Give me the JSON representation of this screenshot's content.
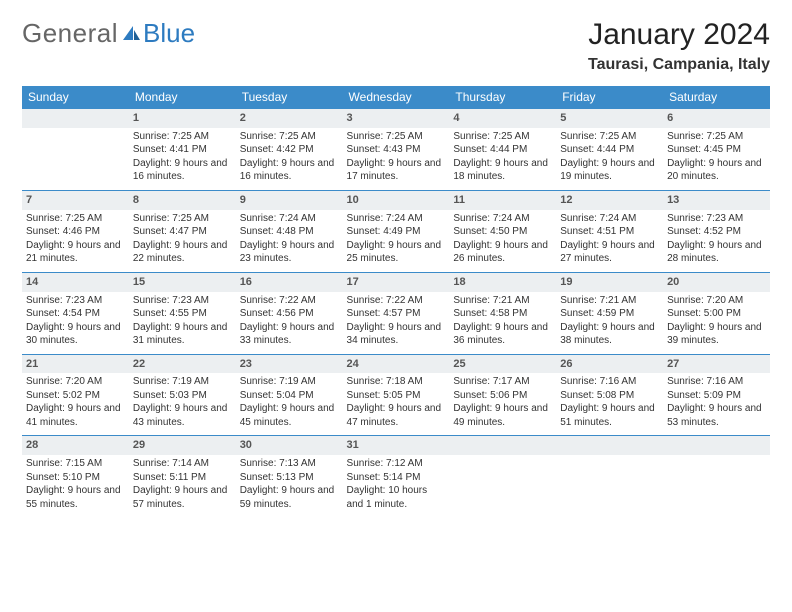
{
  "brand": {
    "part1": "General",
    "part2": "Blue"
  },
  "title": "January 2024",
  "location": "Taurasi, Campania, Italy",
  "colors": {
    "header_bg": "#3b8bc9",
    "header_text": "#ffffff",
    "daynum_bg": "#eceff1",
    "row_border": "#3b8bc9",
    "logo_blue": "#2d7bc0",
    "logo_gray": "#666666",
    "body_text": "#333333",
    "background": "#ffffff"
  },
  "weekdays": [
    "Sunday",
    "Monday",
    "Tuesday",
    "Wednesday",
    "Thursday",
    "Friday",
    "Saturday"
  ],
  "weeks": [
    [
      {
        "n": "",
        "sr": "",
        "ss": "",
        "dl": ""
      },
      {
        "n": "1",
        "sr": "Sunrise: 7:25 AM",
        "ss": "Sunset: 4:41 PM",
        "dl": "Daylight: 9 hours and 16 minutes."
      },
      {
        "n": "2",
        "sr": "Sunrise: 7:25 AM",
        "ss": "Sunset: 4:42 PM",
        "dl": "Daylight: 9 hours and 16 minutes."
      },
      {
        "n": "3",
        "sr": "Sunrise: 7:25 AM",
        "ss": "Sunset: 4:43 PM",
        "dl": "Daylight: 9 hours and 17 minutes."
      },
      {
        "n": "4",
        "sr": "Sunrise: 7:25 AM",
        "ss": "Sunset: 4:44 PM",
        "dl": "Daylight: 9 hours and 18 minutes."
      },
      {
        "n": "5",
        "sr": "Sunrise: 7:25 AM",
        "ss": "Sunset: 4:44 PM",
        "dl": "Daylight: 9 hours and 19 minutes."
      },
      {
        "n": "6",
        "sr": "Sunrise: 7:25 AM",
        "ss": "Sunset: 4:45 PM",
        "dl": "Daylight: 9 hours and 20 minutes."
      }
    ],
    [
      {
        "n": "7",
        "sr": "Sunrise: 7:25 AM",
        "ss": "Sunset: 4:46 PM",
        "dl": "Daylight: 9 hours and 21 minutes."
      },
      {
        "n": "8",
        "sr": "Sunrise: 7:25 AM",
        "ss": "Sunset: 4:47 PM",
        "dl": "Daylight: 9 hours and 22 minutes."
      },
      {
        "n": "9",
        "sr": "Sunrise: 7:24 AM",
        "ss": "Sunset: 4:48 PM",
        "dl": "Daylight: 9 hours and 23 minutes."
      },
      {
        "n": "10",
        "sr": "Sunrise: 7:24 AM",
        "ss": "Sunset: 4:49 PM",
        "dl": "Daylight: 9 hours and 25 minutes."
      },
      {
        "n": "11",
        "sr": "Sunrise: 7:24 AM",
        "ss": "Sunset: 4:50 PM",
        "dl": "Daylight: 9 hours and 26 minutes."
      },
      {
        "n": "12",
        "sr": "Sunrise: 7:24 AM",
        "ss": "Sunset: 4:51 PM",
        "dl": "Daylight: 9 hours and 27 minutes."
      },
      {
        "n": "13",
        "sr": "Sunrise: 7:23 AM",
        "ss": "Sunset: 4:52 PM",
        "dl": "Daylight: 9 hours and 28 minutes."
      }
    ],
    [
      {
        "n": "14",
        "sr": "Sunrise: 7:23 AM",
        "ss": "Sunset: 4:54 PM",
        "dl": "Daylight: 9 hours and 30 minutes."
      },
      {
        "n": "15",
        "sr": "Sunrise: 7:23 AM",
        "ss": "Sunset: 4:55 PM",
        "dl": "Daylight: 9 hours and 31 minutes."
      },
      {
        "n": "16",
        "sr": "Sunrise: 7:22 AM",
        "ss": "Sunset: 4:56 PM",
        "dl": "Daylight: 9 hours and 33 minutes."
      },
      {
        "n": "17",
        "sr": "Sunrise: 7:22 AM",
        "ss": "Sunset: 4:57 PM",
        "dl": "Daylight: 9 hours and 34 minutes."
      },
      {
        "n": "18",
        "sr": "Sunrise: 7:21 AM",
        "ss": "Sunset: 4:58 PM",
        "dl": "Daylight: 9 hours and 36 minutes."
      },
      {
        "n": "19",
        "sr": "Sunrise: 7:21 AM",
        "ss": "Sunset: 4:59 PM",
        "dl": "Daylight: 9 hours and 38 minutes."
      },
      {
        "n": "20",
        "sr": "Sunrise: 7:20 AM",
        "ss": "Sunset: 5:00 PM",
        "dl": "Daylight: 9 hours and 39 minutes."
      }
    ],
    [
      {
        "n": "21",
        "sr": "Sunrise: 7:20 AM",
        "ss": "Sunset: 5:02 PM",
        "dl": "Daylight: 9 hours and 41 minutes."
      },
      {
        "n": "22",
        "sr": "Sunrise: 7:19 AM",
        "ss": "Sunset: 5:03 PM",
        "dl": "Daylight: 9 hours and 43 minutes."
      },
      {
        "n": "23",
        "sr": "Sunrise: 7:19 AM",
        "ss": "Sunset: 5:04 PM",
        "dl": "Daylight: 9 hours and 45 minutes."
      },
      {
        "n": "24",
        "sr": "Sunrise: 7:18 AM",
        "ss": "Sunset: 5:05 PM",
        "dl": "Daylight: 9 hours and 47 minutes."
      },
      {
        "n": "25",
        "sr": "Sunrise: 7:17 AM",
        "ss": "Sunset: 5:06 PM",
        "dl": "Daylight: 9 hours and 49 minutes."
      },
      {
        "n": "26",
        "sr": "Sunrise: 7:16 AM",
        "ss": "Sunset: 5:08 PM",
        "dl": "Daylight: 9 hours and 51 minutes."
      },
      {
        "n": "27",
        "sr": "Sunrise: 7:16 AM",
        "ss": "Sunset: 5:09 PM",
        "dl": "Daylight: 9 hours and 53 minutes."
      }
    ],
    [
      {
        "n": "28",
        "sr": "Sunrise: 7:15 AM",
        "ss": "Sunset: 5:10 PM",
        "dl": "Daylight: 9 hours and 55 minutes."
      },
      {
        "n": "29",
        "sr": "Sunrise: 7:14 AM",
        "ss": "Sunset: 5:11 PM",
        "dl": "Daylight: 9 hours and 57 minutes."
      },
      {
        "n": "30",
        "sr": "Sunrise: 7:13 AM",
        "ss": "Sunset: 5:13 PM",
        "dl": "Daylight: 9 hours and 59 minutes."
      },
      {
        "n": "31",
        "sr": "Sunrise: 7:12 AM",
        "ss": "Sunset: 5:14 PM",
        "dl": "Daylight: 10 hours and 1 minute."
      },
      {
        "n": "",
        "sr": "",
        "ss": "",
        "dl": ""
      },
      {
        "n": "",
        "sr": "",
        "ss": "",
        "dl": ""
      },
      {
        "n": "",
        "sr": "",
        "ss": "",
        "dl": ""
      }
    ]
  ]
}
